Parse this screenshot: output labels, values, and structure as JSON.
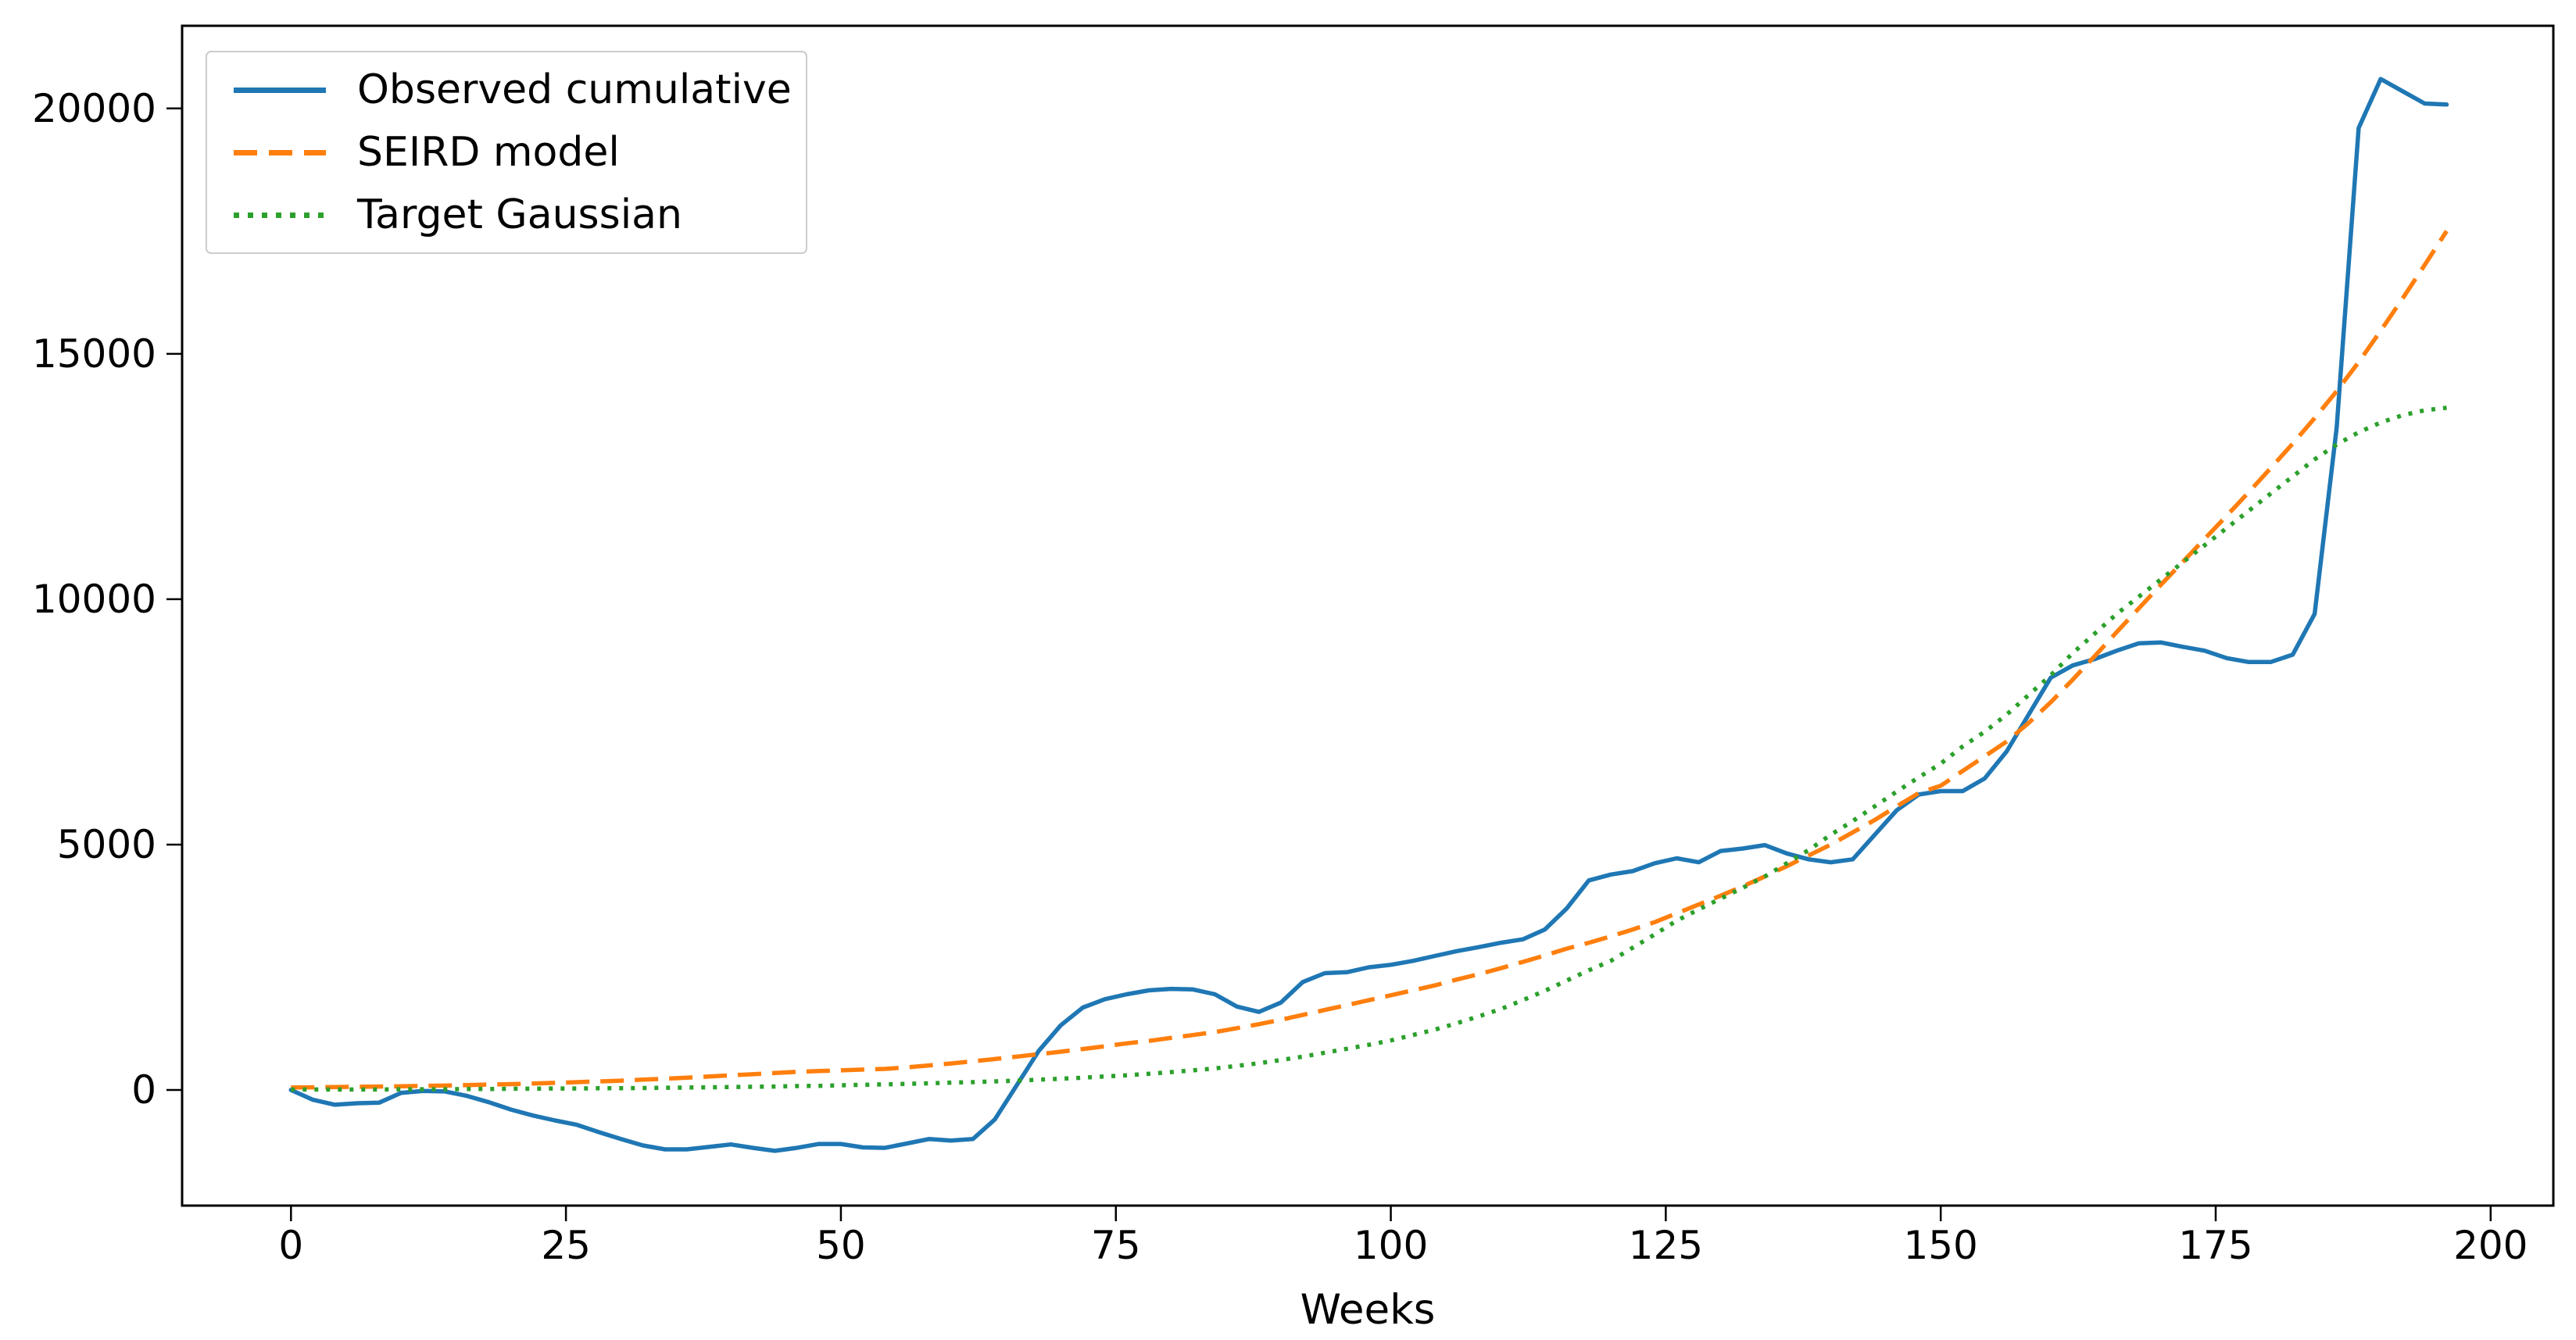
{
  "chart_data": {
    "type": "line",
    "title": "",
    "xlabel": "Weeks",
    "ylabel": "",
    "grid": false,
    "legend_position": "upper left",
    "xlim": [
      -9.9,
      205.7
    ],
    "ylim": [
      -2356,
      21684
    ],
    "xticks": [
      0,
      25,
      50,
      75,
      100,
      125,
      150,
      175,
      200
    ],
    "yticks": [
      0,
      5000,
      10000,
      15000,
      20000
    ],
    "x": [
      0,
      2,
      4,
      6,
      8,
      10,
      12,
      14,
      16,
      18,
      20,
      22,
      24,
      26,
      28,
      30,
      32,
      34,
      36,
      38,
      40,
      42,
      44,
      46,
      48,
      50,
      52,
      54,
      56,
      58,
      60,
      62,
      64,
      66,
      68,
      70,
      72,
      74,
      76,
      78,
      80,
      82,
      84,
      86,
      88,
      90,
      92,
      94,
      96,
      98,
      100,
      102,
      104,
      106,
      108,
      110,
      112,
      114,
      116,
      118,
      120,
      122,
      124,
      126,
      128,
      130,
      132,
      134,
      136,
      138,
      140,
      142,
      144,
      146,
      148,
      150,
      152,
      154,
      156,
      158,
      160,
      162,
      164,
      166,
      168,
      170,
      172,
      174,
      176,
      178,
      180,
      182,
      184,
      186,
      188,
      190,
      192,
      194,
      196
    ],
    "series": [
      {
        "name": "Observed cumulative",
        "color": "#1f77b4",
        "linestyle": "solid",
        "values": [
          0,
          -200,
          -300,
          -270,
          -260,
          -60,
          -20,
          -30,
          -120,
          -250,
          -400,
          -520,
          -620,
          -710,
          -860,
          -1000,
          -1130,
          -1210,
          -1210,
          -1160,
          -1110,
          -1180,
          -1240,
          -1180,
          -1100,
          -1100,
          -1170,
          -1180,
          -1090,
          -1000,
          -1030,
          -1000,
          -600,
          100,
          800,
          1320,
          1680,
          1850,
          1950,
          2030,
          2060,
          2050,
          1950,
          1700,
          1590,
          1780,
          2200,
          2380,
          2400,
          2500,
          2550,
          2630,
          2730,
          2830,
          2910,
          3000,
          3070,
          3270,
          3700,
          4270,
          4390,
          4460,
          4620,
          4720,
          4640,
          4870,
          4920,
          4990,
          4820,
          4700,
          4640,
          4700,
          5200,
          5700,
          6020,
          6090,
          6090,
          6350,
          6900,
          7650,
          8400,
          8650,
          8780,
          8950,
          9100,
          9120,
          9030,
          8950,
          8800,
          8720,
          8720,
          8870,
          9700,
          13500,
          19600,
          20600,
          20350,
          20100,
          20080
        ]
      },
      {
        "name": "SEIRD model",
        "color": "#ff7f0e",
        "linestyle": "dashed",
        "values": [
          50,
          55,
          60,
          65,
          70,
          75,
          85,
          90,
          100,
          110,
          120,
          130,
          145,
          160,
          175,
          190,
          210,
          230,
          250,
          275,
          300,
          320,
          345,
          370,
          385,
          400,
          415,
          430,
          460,
          500,
          540,
          585,
          630,
          680,
          730,
          780,
          835,
          890,
          950,
          1000,
          1060,
          1120,
          1180,
          1260,
          1340,
          1430,
          1530,
          1630,
          1730,
          1830,
          1930,
          2030,
          2130,
          2250,
          2360,
          2480,
          2610,
          2740,
          2880,
          3000,
          3130,
          3270,
          3420,
          3600,
          3780,
          3960,
          4150,
          4350,
          4560,
          4780,
          5000,
          5250,
          5500,
          5780,
          6050,
          6200,
          6500,
          6800,
          7100,
          7480,
          7900,
          8360,
          8840,
          9330,
          9810,
          10290,
          10760,
          11230,
          11700,
          12180,
          12670,
          13170,
          13690,
          14240,
          14830,
          15470,
          16130,
          16810,
          17500
        ]
      },
      {
        "name": "Target Gaussian",
        "color": "#2ca02c",
        "linestyle": "dotted",
        "values": [
          10,
          10,
          10,
          10,
          10,
          15,
          15,
          15,
          20,
          20,
          25,
          25,
          30,
          30,
          35,
          35,
          40,
          45,
          50,
          55,
          60,
          65,
          70,
          80,
          85,
          95,
          105,
          115,
          125,
          135,
          150,
          160,
          175,
          190,
          210,
          230,
          250,
          275,
          300,
          330,
          365,
          400,
          440,
          490,
          545,
          610,
          680,
          760,
          840,
          920,
          1010,
          1120,
          1230,
          1360,
          1500,
          1650,
          1830,
          2020,
          2230,
          2440,
          2630,
          2900,
          3170,
          3450,
          3680,
          3900,
          4120,
          4350,
          4620,
          4890,
          5200,
          5480,
          5780,
          6080,
          6370,
          6650,
          7000,
          7300,
          7650,
          8050,
          8450,
          8900,
          9300,
          9700,
          10050,
          10400,
          10750,
          11100,
          11450,
          11800,
          12150,
          12500,
          12850,
          13150,
          13400,
          13600,
          13750,
          13850,
          13900
        ]
      }
    ]
  },
  "layout_colors": {
    "spine": "#000000",
    "background": "#ffffff",
    "legend_border": "#cccccc"
  }
}
